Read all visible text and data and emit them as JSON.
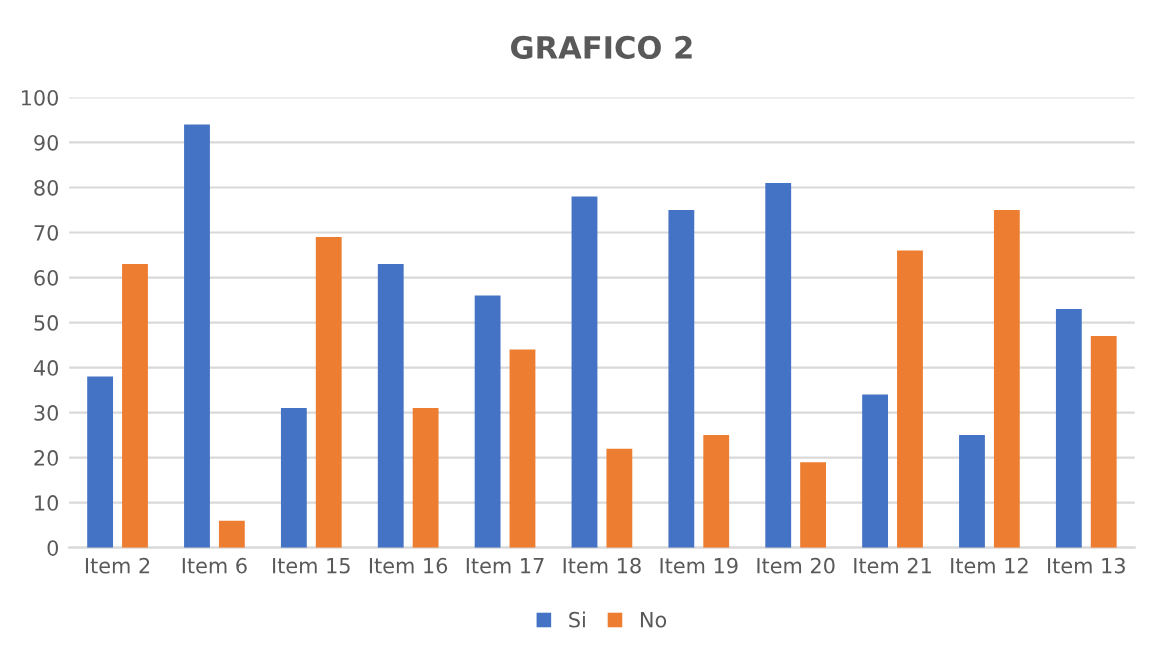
{
  "chart_data": {
    "type": "bar",
    "title": "GRAFICO 2",
    "categories": [
      "Item 2",
      "Item 6",
      "Item 15",
      "Item 16",
      "Item 17",
      "Item 18",
      "Item 19",
      "Item 20",
      "Item 21",
      "Item 12",
      "Item 13"
    ],
    "series": [
      {
        "name": "Si",
        "color": "#4472c4",
        "values": [
          38,
          94,
          31,
          63,
          56,
          78,
          75,
          81,
          34,
          25,
          53
        ]
      },
      {
        "name": "No",
        "color": "#ed7d31",
        "values": [
          63,
          6,
          69,
          31,
          44,
          22,
          25,
          19,
          66,
          75,
          47
        ]
      }
    ],
    "ylim": [
      0,
      100
    ],
    "yticks": [
      0,
      10,
      20,
      30,
      40,
      50,
      60,
      70,
      80,
      90,
      100
    ],
    "grid": "y",
    "legend": "bottom"
  }
}
